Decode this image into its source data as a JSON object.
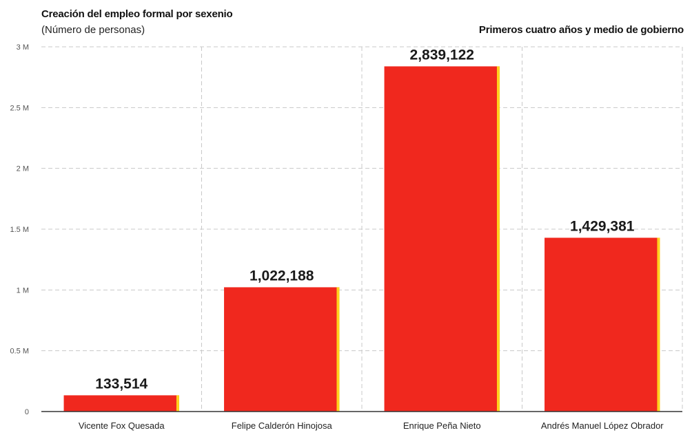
{
  "header": {
    "title": "Creación del empleo formal por sexenio",
    "subtitle": "(Número de personas)",
    "note": "Primeros cuatro años y medio de gobierno"
  },
  "colors": {
    "bar": "#f0281e",
    "bar_edge": "#ffd21e",
    "grid": "#c8c8c8",
    "axis": "#333333"
  },
  "chart_data": {
    "type": "bar",
    "title": "Creación del empleo formal por sexenio",
    "subtitle": "(Número de personas)",
    "categories": [
      "Vicente Fox Quesada",
      "Felipe Calderón Hinojosa",
      "Enrique Peña Nieto",
      "Andrés Manuel López Obrador"
    ],
    "values": [
      133514,
      1022188,
      2839122,
      1429381
    ],
    "data_labels": [
      "133,514",
      "1,022,188",
      "2,839,122",
      "1,429,381"
    ],
    "ylim": [
      0,
      3000000
    ],
    "yticks": [
      0,
      500000,
      1000000,
      1500000,
      2000000,
      2500000,
      3000000
    ],
    "ytick_labels": [
      "0",
      "0.5 M",
      "1 M",
      "1.5 M",
      "2 M",
      "2.5 M",
      "3 M"
    ],
    "xlabel": "",
    "ylabel": "",
    "grid": true
  }
}
